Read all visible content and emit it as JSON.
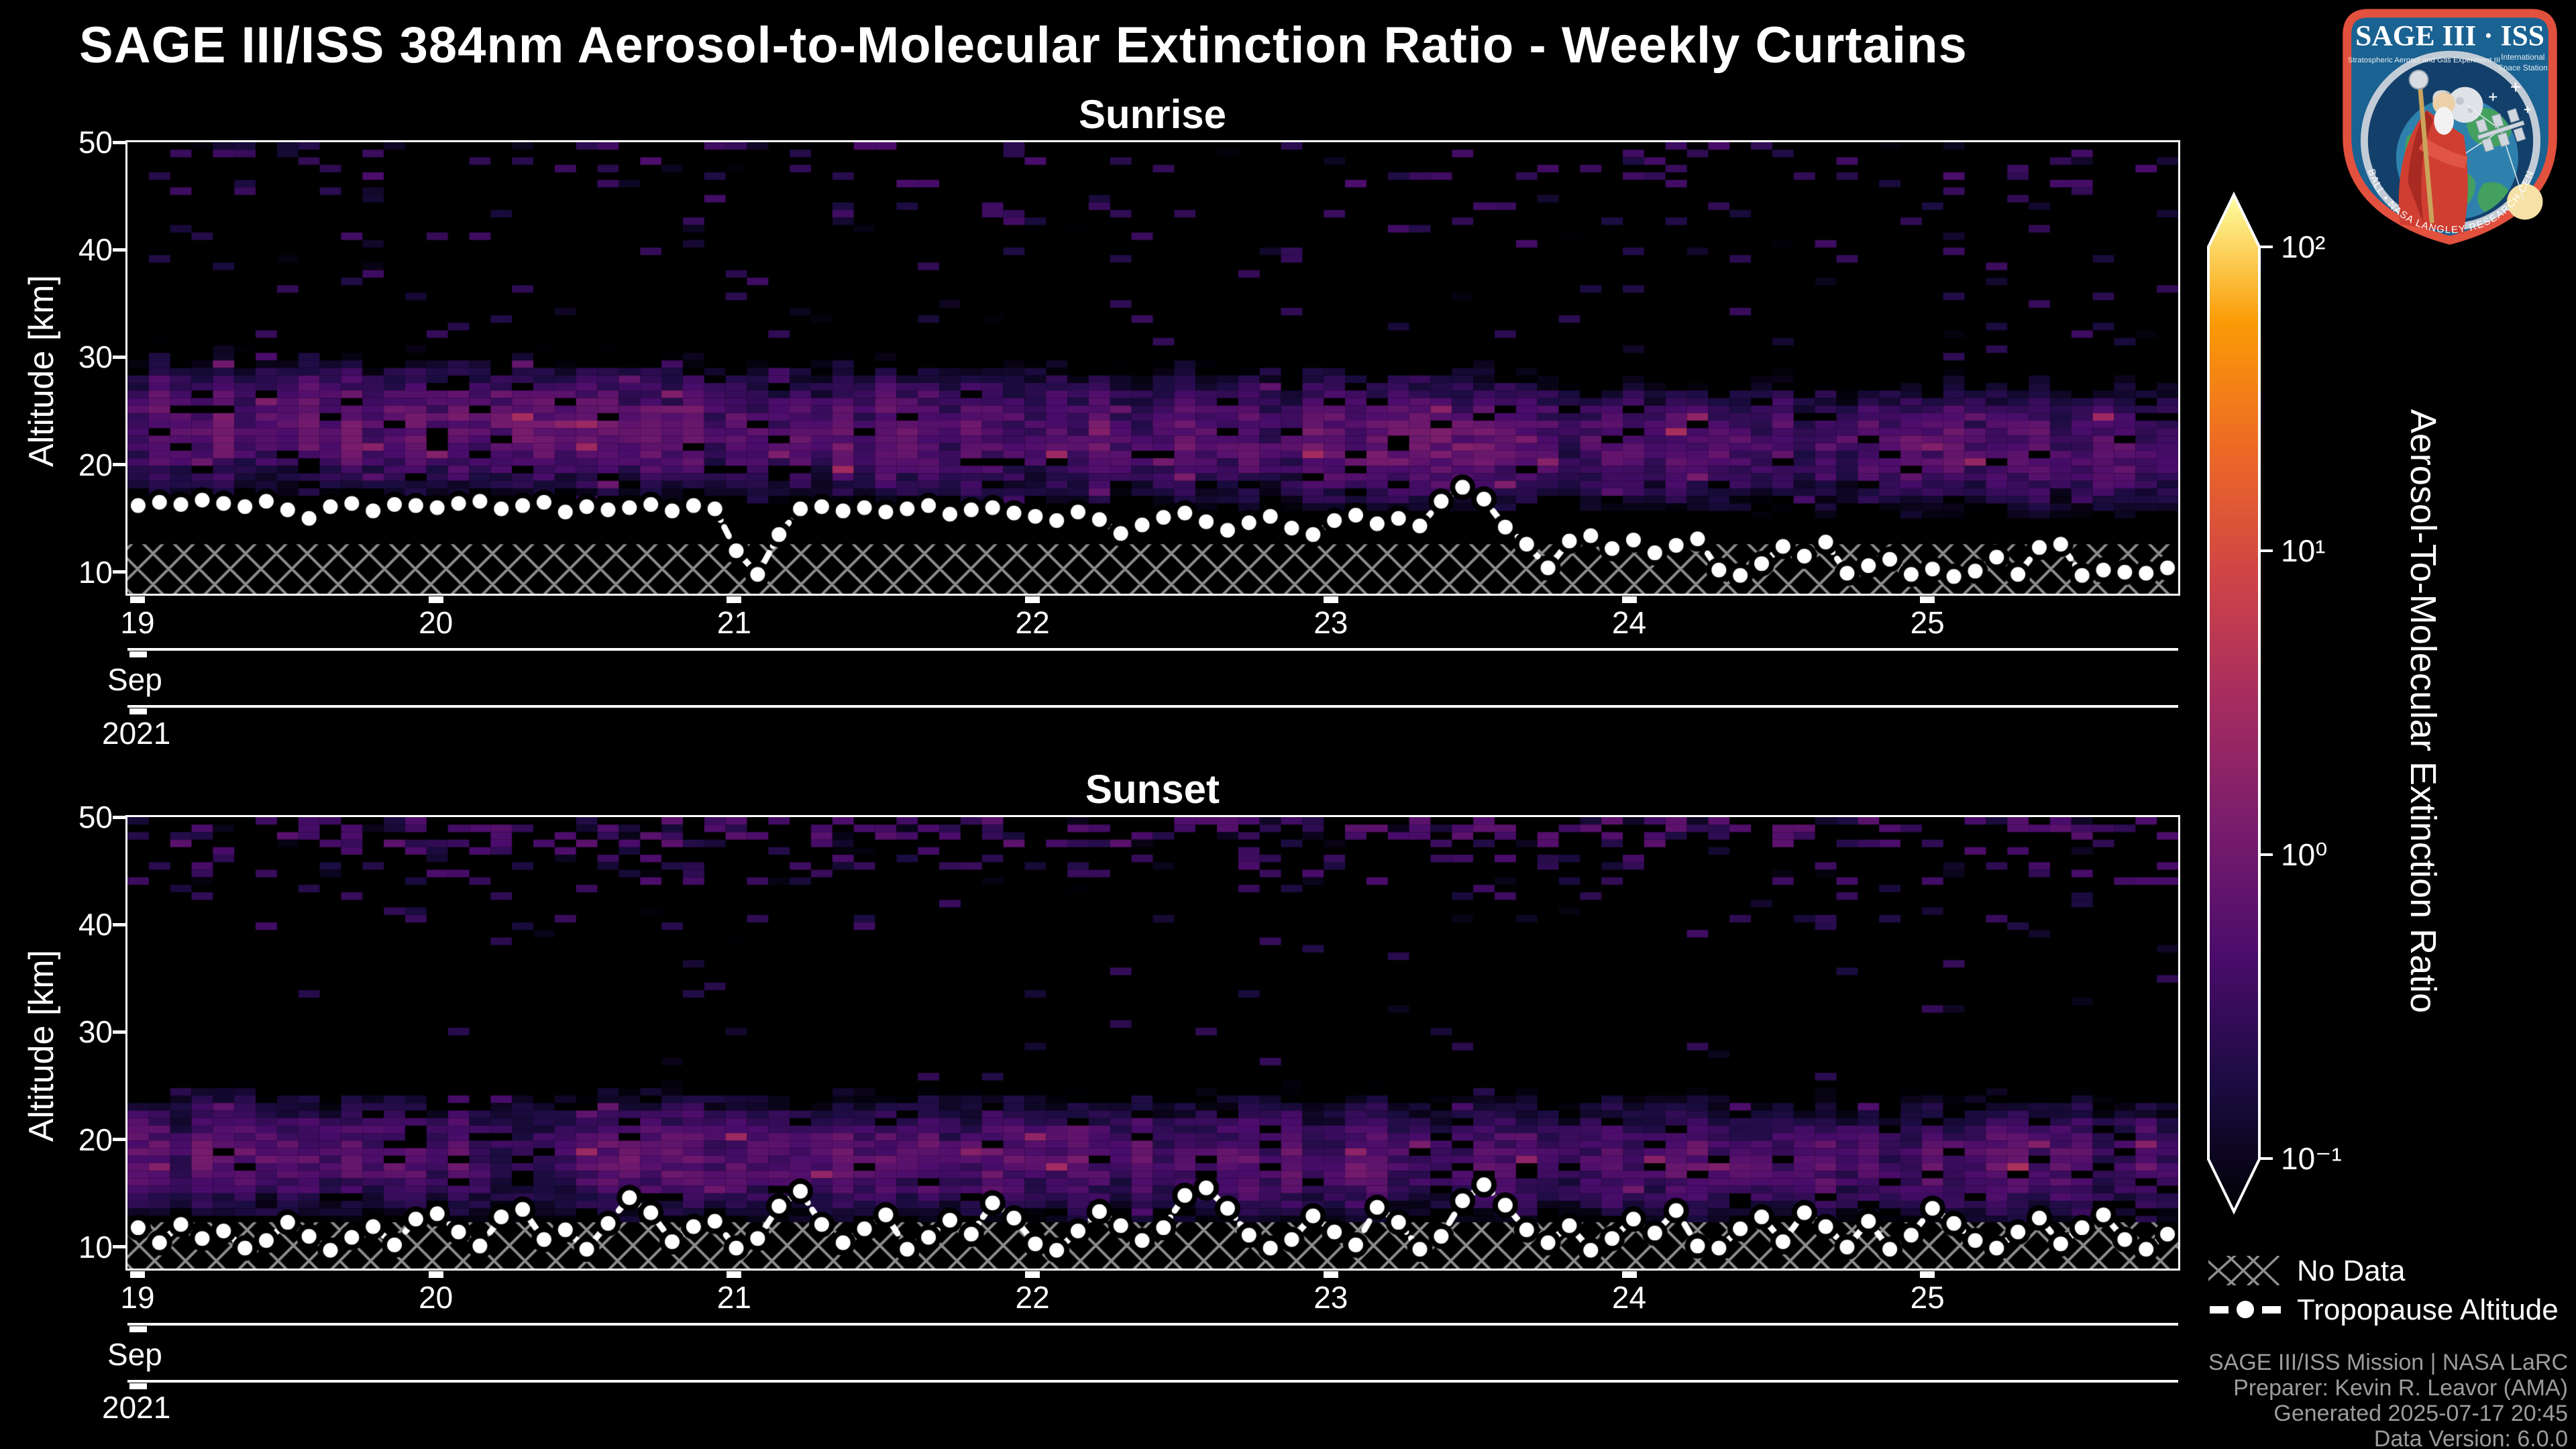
{
  "header": {
    "title": "SAGE III/ISS 384nm Aerosol-to-Molecular Extinction Ratio - Weekly Curtains",
    "logo": {
      "title": "SAGE III · ISS",
      "subtitle_left": "Stratospheric Aerosol and Gas Experiment III",
      "subtitle_right_1": "International",
      "subtitle_right_2": "Space Station",
      "ring_text": "BALL • NASA LANGLEY RESEARCH CENTER • TAS-I • ESA"
    }
  },
  "axes": {
    "y_label": "Altitude [km]",
    "y_ticks": [
      "50",
      "40",
      "30",
      "20",
      "10"
    ],
    "x_ticks": [
      "19",
      "20",
      "21",
      "22",
      "23",
      "24",
      "25"
    ],
    "month_label": "Sep",
    "year_label": "2021"
  },
  "colorbar": {
    "label": "Aerosol-To-Molecular Extinction Ratio",
    "tick_labels": [
      "10²",
      "10¹",
      "10⁰",
      "10⁻¹"
    ],
    "scale": "log",
    "domain": [
      0.1,
      100
    ],
    "colormap_stops": [
      [
        0.0,
        "#000004"
      ],
      [
        0.125,
        "#1b0c41"
      ],
      [
        0.25,
        "#4a0c6b"
      ],
      [
        0.375,
        "#781c6d"
      ],
      [
        0.5,
        "#a52c60"
      ],
      [
        0.625,
        "#cf4446"
      ],
      [
        0.75,
        "#ed6925"
      ],
      [
        0.875,
        "#fb9b06"
      ],
      [
        1.0,
        "#fcffa4"
      ]
    ]
  },
  "legend": {
    "no_data_label": "No Data",
    "tropopause_label": "Tropopause Altitude"
  },
  "credits": [
    "SAGE III/ISS Mission | NASA LaRC",
    "Preparer: Kevin R. Leavor (AMA)",
    "Generated 2025-07-17 20:45",
    "Data Version: 6.0.0"
  ],
  "chart_data": {
    "type": "heatmap",
    "title": "SAGE III/ISS 384nm Aerosol-to-Molecular Extinction Ratio - Weekly Curtains",
    "x": {
      "unit": "date",
      "month": "Sep",
      "year": "2021",
      "tick_days": [
        19,
        20,
        21,
        22,
        23,
        24,
        25
      ],
      "day_start": 19,
      "day_end": 25.84
    },
    "y": {
      "label": "Altitude [km]",
      "range_km": [
        8,
        50
      ],
      "ticks": [
        50,
        40,
        30,
        20,
        10
      ]
    },
    "color": {
      "label": "Aerosol-To-Molecular Extinction Ratio",
      "scale": "log",
      "range": [
        0.1,
        100
      ]
    },
    "subplots": [
      {
        "title": "Sunrise",
        "model_key": "sunrise",
        "tropopause_km": [
          16.2,
          16.5,
          16.3,
          16.7,
          16.4,
          16.1,
          16.6,
          15.8,
          15.0,
          16.1,
          16.4,
          15.7,
          16.3,
          16.2,
          16.0,
          16.4,
          16.6,
          15.9,
          16.2,
          16.5,
          15.6,
          16.1,
          15.8,
          16.0,
          16.3,
          15.7,
          16.2,
          15.9,
          12.0,
          9.8,
          13.5,
          15.9,
          16.1,
          15.7,
          16.0,
          15.6,
          15.9,
          16.2,
          15.4,
          15.8,
          16.0,
          15.5,
          15.2,
          14.8,
          15.6,
          14.9,
          13.6,
          14.4,
          15.1,
          15.5,
          14.7,
          13.9,
          14.6,
          15.2,
          14.1,
          13.5,
          14.8,
          15.3,
          14.5,
          15.0,
          14.3,
          16.6,
          17.9,
          16.8,
          14.2,
          12.6,
          10.4,
          12.9,
          13.4,
          12.2,
          13.0,
          11.8,
          12.5,
          13.1,
          10.2,
          9.7,
          10.8,
          12.4,
          11.5,
          12.8,
          9.9,
          10.6,
          11.2,
          9.8,
          10.3,
          9.6,
          10.1,
          11.4,
          9.8,
          12.3,
          12.6,
          9.7,
          10.2,
          10.0,
          9.9,
          10.4
        ]
      },
      {
        "title": "Sunset",
        "model_key": "sunset",
        "tropopause_km": [
          11.8,
          10.4,
          12.1,
          10.8,
          11.5,
          9.9,
          10.6,
          12.3,
          11.0,
          9.7,
          10.9,
          11.9,
          10.2,
          12.6,
          13.1,
          11.4,
          10.1,
          12.8,
          13.5,
          10.7,
          11.6,
          9.8,
          12.2,
          14.6,
          13.2,
          10.5,
          11.9,
          12.4,
          9.9,
          10.8,
          13.8,
          15.2,
          12.1,
          10.4,
          11.7,
          13.0,
          9.8,
          10.9,
          12.5,
          11.2,
          14.1,
          12.7,
          10.3,
          9.7,
          11.5,
          13.3,
          12.0,
          10.6,
          11.8,
          14.8,
          15.5,
          13.6,
          11.1,
          9.9,
          10.7,
          12.9,
          11.4,
          10.2,
          13.7,
          12.3,
          9.8,
          11.0,
          14.3,
          15.8,
          13.9,
          11.6,
          10.4,
          12.0,
          9.7,
          10.8,
          12.6,
          11.3,
          13.4,
          10.1,
          9.9,
          11.7,
          12.8,
          10.5,
          13.2,
          11.9,
          10.0,
          12.4,
          9.8,
          11.1,
          13.6,
          12.2,
          10.6,
          9.9,
          11.4,
          12.7,
          10.3,
          11.8,
          13.0,
          10.7,
          9.8,
          11.2
        ]
      }
    ],
    "heatmap_model": {
      "columns": 96,
      "rows": 60,
      "alt_min_km": 8,
      "alt_max_km": 50,
      "sunrise": {
        "seed": 1337,
        "band": {
          "center_start": 23.8,
          "center_end": 21.3,
          "sigma": 3.4,
          "peak": 0.85,
          "bottom_cut": 6.5
        },
        "column_dim": {
          "from": 66,
          "to": 95,
          "factor": 0.75,
          "top_drop": 2.5
        },
        "speckles": [
          {
            "alt_from": 46,
            "alt_to": 50,
            "p": 0.13,
            "v_min": 0.1,
            "v_max": 0.6
          },
          {
            "alt_from": 40,
            "alt_to": 46,
            "p": 0.07,
            "v_min": 0.1,
            "v_max": 0.5
          },
          {
            "alt_from": 30,
            "alt_to": 40,
            "p": 0.045,
            "v_min": 0.1,
            "v_max": 0.45
          }
        ],
        "bright_fleck_p": 0.025,
        "no_data_top_km": 12.6
      },
      "sunset": {
        "seed": 777,
        "band": {
          "center_start": 18.6,
          "center_end": 17.8,
          "sigma": 3.2,
          "peak": 0.7,
          "bottom_cut": 6.0
        },
        "column_dim": null,
        "speckles": [
          {
            "alt_from": 47.5,
            "alt_to": 50,
            "p": 0.45,
            "v_min": 0.12,
            "v_max": 0.8
          },
          {
            "alt_from": 44,
            "alt_to": 47.5,
            "p": 0.2,
            "v_min": 0.1,
            "v_max": 0.6
          },
          {
            "alt_from": 38,
            "alt_to": 44,
            "p": 0.07,
            "v_min": 0.1,
            "v_max": 0.5
          },
          {
            "alt_from": 24,
            "alt_to": 38,
            "p": 0.02,
            "v_min": 0.1,
            "v_max": 0.4
          }
        ],
        "bright_fleck_p": 0.02,
        "no_data_top_km": 12.3
      }
    }
  }
}
